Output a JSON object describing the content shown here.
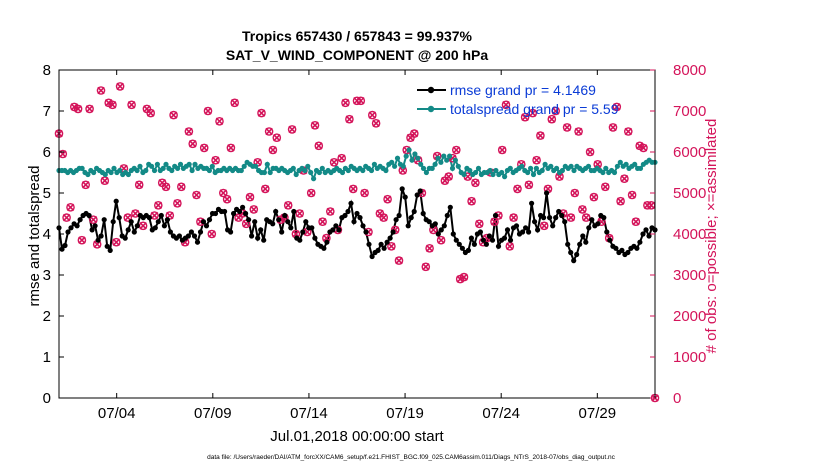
{
  "chart_data": {
    "type": "line",
    "title": "Tropics 657430 / 657843 = 99.937%",
    "subtitle": "SAT_V_WIND_COMPONENT @ 200 hPa",
    "xlabel": "Jul.01,2018 00:00:00 start",
    "ylabel": "rmse and totalspread",
    "ylabel_right": "# of obs: o=possible; ×=assimilated",
    "footer": "data file: /Users/raeder/DAI/ATM_forcXX/CAM6_setup/f.e21.FHIST_BGC.f09_025.CAM6assim.011/Diags_NTrS_2018-07/obs_diag_output.nc",
    "xlim": [
      0,
      31
    ],
    "ylim": [
      0,
      8
    ],
    "ylim_right": [
      0,
      8000
    ],
    "xticks": [
      3,
      8,
      13,
      18,
      23,
      28
    ],
    "xtick_labels": [
      "07/04",
      "07/09",
      "07/14",
      "07/19",
      "07/24",
      "07/29"
    ],
    "yticks": [
      0,
      1,
      2,
      3,
      4,
      5,
      6,
      7,
      8
    ],
    "yticks_right": [
      0,
      1000,
      2000,
      3000,
      4000,
      5000,
      6000,
      7000,
      8000
    ],
    "legend": "top-right",
    "colors": {
      "rmse": "#000000",
      "spread": "#138a87",
      "obs": "#d4145a",
      "legend_text": "#0a3bd6"
    },
    "series": [
      {
        "name": "rmse grand pr = 4.1469",
        "color": "#000000",
        "values": [
          4.15,
          3.63,
          3.72,
          4.05,
          4.15,
          4.25,
          4.2,
          4.35,
          4.45,
          4.5,
          4.45,
          4.1,
          4.2,
          3.85,
          3.95,
          4.35,
          3.7,
          3.6,
          4.3,
          4.8,
          4.4,
          3.95,
          3.9,
          4.1,
          4.3,
          4.05,
          4.2,
          4.45,
          4.4,
          4.45,
          4.4,
          4.1,
          4.15,
          4.3,
          4.45,
          4.2,
          4.35,
          4.05,
          3.95,
          3.9,
          3.95,
          3.85,
          3.9,
          3.95,
          4.05,
          3.95,
          3.8,
          4.05,
          4.3,
          4.2,
          4.35,
          4.5,
          4.5,
          4.6,
          4.55,
          4.55,
          4.1,
          4.05,
          4.5,
          4.6,
          4.55,
          4.65,
          4.5,
          4.35,
          3.95,
          4.3,
          3.9,
          4.1,
          3.85,
          4.35,
          4.3,
          4.25,
          4.55,
          4.35,
          4.05,
          4.45,
          4.3,
          4.15,
          4.55,
          3.9,
          3.85,
          4.05,
          4.3,
          4.15,
          4.15,
          3.9,
          3.75,
          3.7,
          3.65,
          3.8,
          4.05,
          4.1,
          4.2,
          4.1,
          4.4,
          4.45,
          4.55,
          4.75,
          4.3,
          4.5,
          4.4,
          4.2,
          4.05,
          3.75,
          3.45,
          3.55,
          3.6,
          3.75,
          3.65,
          3.8,
          3.9,
          4.05,
          4.35,
          4.45,
          5.1,
          4.9,
          4.2,
          4.4,
          4.55,
          4.95,
          5.05,
          4.5,
          4.35,
          4.3,
          4.2,
          4.25,
          4.0,
          4.1,
          4.2,
          4.45,
          4.65,
          4.0,
          3.85,
          3.75,
          3.65,
          3.55,
          3.6,
          3.9,
          3.75,
          4.0,
          4.05,
          3.85,
          3.75,
          3.95,
          3.85,
          4.45,
          3.7,
          3.85,
          3.9,
          4.1,
          3.85,
          4.15,
          4.2,
          4.0,
          4.05,
          4.15,
          4.05,
          4.75,
          4.3,
          4.1,
          4.45,
          4.4,
          5.0,
          4.4,
          4.2,
          4.4,
          4.55,
          4.45,
          4.3,
          3.75,
          3.55,
          3.35,
          3.5,
          3.75,
          3.95,
          3.8,
          4.15,
          4.35,
          4.2,
          4.25,
          4.45,
          4.4,
          4.05,
          3.85,
          3.7,
          3.65,
          3.55,
          3.6,
          3.5,
          3.55,
          3.65,
          3.7,
          3.65,
          3.8,
          4.0,
          4.1,
          3.95,
          4.15,
          4.1
        ]
      },
      {
        "name": "totalspread grand pr = 5.59",
        "color": "#138a87",
        "values": [
          5.55,
          5.55,
          5.55,
          5.5,
          5.55,
          5.5,
          5.55,
          5.6,
          5.6,
          5.5,
          5.45,
          5.55,
          5.5,
          5.6,
          5.55,
          5.5,
          5.45,
          5.55,
          5.5,
          5.6,
          5.5,
          5.55,
          5.45,
          5.5,
          5.45,
          5.55,
          5.6,
          5.55,
          5.65,
          5.5,
          5.55,
          5.7,
          5.65,
          5.55,
          5.7,
          5.55,
          5.6,
          5.7,
          5.6,
          5.55,
          5.65,
          5.6,
          5.7,
          5.6,
          5.65,
          5.7,
          5.55,
          5.7,
          5.6,
          5.65,
          5.6,
          5.6,
          5.55,
          5.65,
          5.5,
          5.55,
          5.55,
          5.6,
          5.55,
          5.6,
          5.55,
          5.6,
          5.55,
          5.55,
          5.65,
          5.75,
          5.7,
          5.65,
          5.65,
          5.55,
          5.5,
          5.5,
          5.7,
          5.5,
          5.6,
          5.6,
          5.55,
          5.6,
          5.55,
          5.5,
          5.55,
          5.6,
          5.45,
          5.55,
          5.6,
          5.55,
          5.65,
          5.5,
          5.35,
          5.55,
          5.5,
          5.6,
          5.5,
          5.55,
          5.5,
          5.55,
          5.6,
          5.55,
          5.5,
          5.6,
          5.55,
          5.65,
          5.6,
          5.55,
          5.6,
          5.55,
          5.65,
          5.6,
          5.55,
          5.7,
          5.6,
          5.65,
          5.6,
          5.55,
          5.7,
          5.75,
          5.65,
          5.85,
          5.7,
          5.65,
          5.9,
          6.05,
          5.8,
          5.95,
          5.85,
          5.7,
          5.6,
          5.5,
          5.6,
          5.6,
          5.7,
          5.85,
          5.75,
          5.9,
          5.8,
          5.9,
          5.6,
          5.8,
          5.65,
          5.5,
          5.45,
          5.6,
          5.55,
          5.45,
          5.5,
          5.6,
          5.45,
          5.5,
          5.5,
          5.55,
          5.45,
          5.55,
          5.45,
          5.5,
          5.4,
          5.55,
          5.6,
          5.5,
          5.55,
          5.6,
          5.65,
          5.55,
          5.5,
          5.6,
          5.45,
          5.6,
          5.5,
          5.55,
          5.7,
          5.6,
          5.65,
          5.55,
          5.6,
          5.5,
          5.55,
          5.65,
          5.6,
          5.65,
          5.55,
          5.65,
          5.6,
          5.55,
          5.6,
          5.65,
          5.55,
          5.55,
          5.6,
          5.55,
          5.5,
          5.6,
          5.5,
          5.55,
          5.5,
          5.65,
          5.75,
          5.65,
          5.7,
          5.6,
          5.65,
          5.7,
          5.6,
          5.6,
          5.7,
          5.75,
          5.8,
          5.75,
          5.75
        ]
      },
      {
        "name": "# of obs (possible / assimilated)",
        "color": "#d4145a",
        "values": [
          6450,
          5950,
          4400,
          4650,
          7100,
          7050,
          3850,
          5200,
          7050,
          4350,
          3750,
          7500,
          5300,
          7200,
          7150,
          3800,
          7600,
          5600,
          4400,
          7150,
          4500,
          5200,
          4200,
          7050,
          6950,
          4450,
          4700,
          5250,
          5150,
          4450,
          6900,
          4750,
          5150,
          3800,
          6500,
          6200,
          4950,
          4300,
          6100,
          7000,
          4000,
          5800,
          6750,
          5000,
          4850,
          6100,
          7200,
          4400,
          4500,
          4250,
          4900,
          4600,
          5750,
          6950,
          5100,
          6500,
          6050,
          6350,
          4350,
          4400,
          4700,
          6550,
          4000,
          4500,
          5550,
          4050,
          5000,
          6650,
          6150,
          4300,
          3900,
          4550,
          5750,
          4100,
          5850,
          7200,
          6800,
          5100,
          7250,
          7250,
          5000,
          4050,
          6900,
          6700,
          4500,
          4400,
          4850,
          3700,
          4100,
          3350,
          5550,
          6050,
          6350,
          6450,
          5800,
          5000,
          3200,
          3650,
          4100,
          5900,
          3850,
          5300,
          5400,
          5850,
          6050,
          2900,
          2950,
          5400,
          4800,
          5250,
          4250,
          3800,
          3900,
          5500,
          4300,
          4450,
          6050,
          7150,
          3700,
          4400,
          5100,
          5700,
          6850,
          5200,
          6950,
          5800,
          6400,
          4200,
          5100,
          6800,
          7000,
          5400,
          4500,
          6600,
          4400,
          5000,
          6500,
          4600,
          4400,
          6000,
          4900,
          5700,
          4300,
          5150,
          3900,
          6600,
          7100,
          4800,
          5350,
          6500,
          4950,
          4300,
          6150,
          6100,
          4700,
          4700,
          0
        ]
      }
    ]
  }
}
